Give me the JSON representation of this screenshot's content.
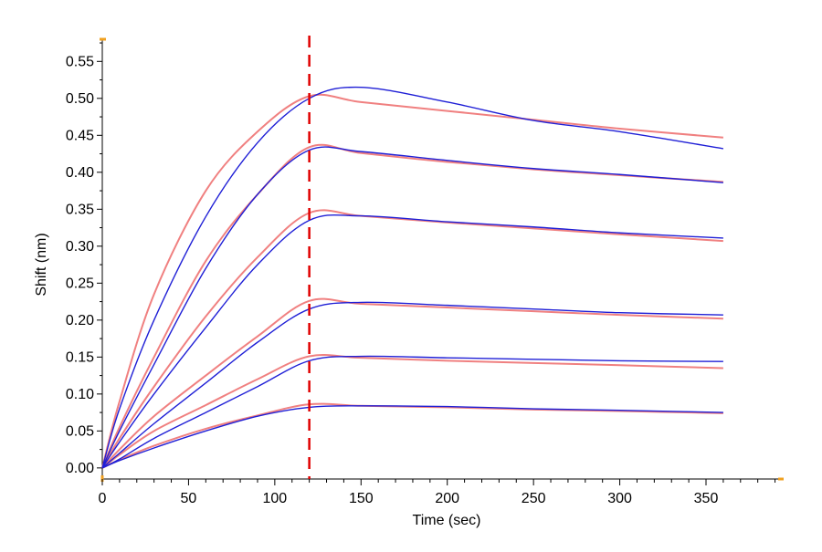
{
  "chart_data": {
    "type": "line",
    "title": "",
    "xlabel": "Time (sec)",
    "ylabel": "Shift (nm)",
    "xlim": [
      0,
      395
    ],
    "ylim": [
      -0.015,
      0.58
    ],
    "x_ticks": [
      0,
      50,
      100,
      150,
      200,
      250,
      300,
      350
    ],
    "x_tick_labels": [
      "0",
      "50",
      "100",
      "150",
      "200",
      "250",
      "300",
      "350"
    ],
    "y_ticks": [
      0.0,
      0.05,
      0.1,
      0.15,
      0.2,
      0.25,
      0.3,
      0.35,
      0.4,
      0.45,
      0.5,
      0.55
    ],
    "y_tick_labels": [
      "0.00",
      "0.05",
      "0.10",
      "0.15",
      "0.20",
      "0.25",
      "0.30",
      "0.35",
      "0.40",
      "0.45",
      "0.50",
      "0.55"
    ],
    "grid": false,
    "legend": "none",
    "dissociation_start_time": 120,
    "end_time": 360,
    "colors": {
      "measured": "#1f1fd6",
      "fit": "#f08080",
      "marker_line": "#e00000",
      "axis": "#000000",
      "axis_end_marker": "#f0a020"
    },
    "series": [
      {
        "role": "measured",
        "x": [
          0,
          10,
          30,
          60,
          90,
          120,
          150,
          200,
          250,
          300,
          360
        ],
        "y": [
          0.0,
          0.08,
          0.2,
          0.34,
          0.44,
          0.5,
          0.515,
          0.495,
          0.47,
          0.455,
          0.432
        ]
      },
      {
        "role": "fit",
        "x": [
          0,
          10,
          30,
          60,
          90,
          120,
          150,
          200,
          250,
          300,
          360
        ],
        "y": [
          0.0,
          0.09,
          0.235,
          0.375,
          0.455,
          0.503,
          0.495,
          0.483,
          0.471,
          0.459,
          0.447
        ]
      },
      {
        "role": "measured",
        "x": [
          0,
          10,
          30,
          60,
          90,
          120,
          150,
          200,
          250,
          300,
          360
        ],
        "y": [
          0.0,
          0.05,
          0.14,
          0.27,
          0.37,
          0.43,
          0.428,
          0.416,
          0.405,
          0.397,
          0.386
        ]
      },
      {
        "role": "fit",
        "x": [
          0,
          10,
          30,
          60,
          90,
          120,
          150,
          200,
          250,
          300,
          360
        ],
        "y": [
          0.0,
          0.055,
          0.15,
          0.28,
          0.37,
          0.434,
          0.426,
          0.414,
          0.404,
          0.396,
          0.387
        ]
      },
      {
        "role": "measured",
        "x": [
          0,
          10,
          30,
          60,
          90,
          120,
          150,
          200,
          250,
          300,
          360
        ],
        "y": [
          0.0,
          0.035,
          0.1,
          0.19,
          0.275,
          0.335,
          0.341,
          0.333,
          0.326,
          0.318,
          0.311
        ]
      },
      {
        "role": "fit",
        "x": [
          0,
          10,
          30,
          60,
          90,
          120,
          150,
          200,
          250,
          300,
          360
        ],
        "y": [
          0.0,
          0.04,
          0.11,
          0.205,
          0.285,
          0.345,
          0.341,
          0.332,
          0.324,
          0.316,
          0.307
        ]
      },
      {
        "role": "measured",
        "x": [
          0,
          10,
          30,
          60,
          90,
          120,
          150,
          200,
          250,
          300,
          360
        ],
        "y": [
          0.0,
          0.02,
          0.06,
          0.115,
          0.17,
          0.215,
          0.224,
          0.22,
          0.215,
          0.21,
          0.207
        ]
      },
      {
        "role": "fit",
        "x": [
          0,
          10,
          30,
          60,
          90,
          120,
          150,
          200,
          250,
          300,
          360
        ],
        "y": [
          0.0,
          0.025,
          0.07,
          0.125,
          0.178,
          0.226,
          0.222,
          0.217,
          0.212,
          0.207,
          0.202
        ]
      },
      {
        "role": "measured",
        "x": [
          0,
          10,
          30,
          60,
          90,
          120,
          150,
          200,
          250,
          300,
          360
        ],
        "y": [
          0.0,
          0.012,
          0.04,
          0.075,
          0.11,
          0.145,
          0.151,
          0.149,
          0.147,
          0.145,
          0.144
        ]
      },
      {
        "role": "fit",
        "x": [
          0,
          10,
          30,
          60,
          90,
          120,
          150,
          200,
          250,
          300,
          360
        ],
        "y": [
          0.0,
          0.018,
          0.05,
          0.085,
          0.12,
          0.151,
          0.149,
          0.145,
          0.142,
          0.139,
          0.135
        ]
      },
      {
        "role": "measured",
        "x": [
          0,
          10,
          30,
          60,
          90,
          120,
          150,
          200,
          250,
          300,
          360
        ],
        "y": [
          0.0,
          0.01,
          0.027,
          0.05,
          0.07,
          0.082,
          0.084,
          0.083,
          0.08,
          0.078,
          0.075
        ]
      },
      {
        "role": "fit",
        "x": [
          0,
          10,
          30,
          60,
          90,
          120,
          150,
          200,
          250,
          300,
          360
        ],
        "y": [
          0.0,
          0.011,
          0.03,
          0.053,
          0.071,
          0.086,
          0.084,
          0.082,
          0.079,
          0.077,
          0.074
        ]
      }
    ]
  }
}
